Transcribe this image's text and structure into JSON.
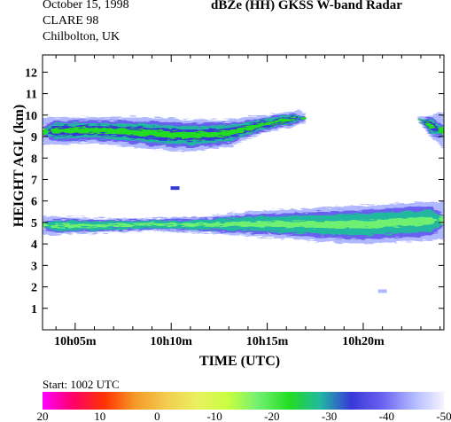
{
  "header": {
    "date": "October 15, 1998",
    "experiment": "CLARE 98",
    "site": "Chilbolton, UK",
    "title": "dBZe (HH)   GKSS  W-band Radar"
  },
  "colorbar": {
    "start_label": "Start: 1002 UTC",
    "stops": [
      "#ff00ff",
      "#ff0066",
      "#ff3300",
      "#f59a28",
      "#f2cc50",
      "#eaf060",
      "#c8ff40",
      "#70f070",
      "#22dd22",
      "#20b8a0",
      "#3838d8",
      "#6a60f0",
      "#b0b8ff",
      "#f4f4ff"
    ],
    "ticks": [
      "20",
      "10",
      "0",
      "-10",
      "-20",
      "-30",
      "-40",
      "-50"
    ]
  },
  "chart_data": {
    "type": "heatmap",
    "title": "dBZe (HH)   GKSS  W-band Radar",
    "xlabel": "TIME (UTC)",
    "ylabel": "HEIGHT AGL (km)",
    "x_unit": "minutes after 10h00 UTC",
    "xlim": [
      3.3,
      24.2
    ],
    "ylim": [
      0,
      12.8
    ],
    "x_ticks": [
      {
        "value": 5,
        "label": "10h05m"
      },
      {
        "value": 10,
        "label": "10h10m"
      },
      {
        "value": 15,
        "label": "10h15m"
      },
      {
        "value": 20,
        "label": "10h20m"
      }
    ],
    "y_ticks": [
      1,
      2,
      3,
      4,
      5,
      6,
      7,
      8,
      9,
      10,
      11,
      12
    ],
    "value_range_dbz": [
      -50,
      20
    ],
    "cloud_layers": [
      {
        "name": "upper",
        "base_km": [
          [
            3.3,
            8.6
          ],
          [
            6,
            8.7
          ],
          [
            9,
            8.4
          ],
          [
            11,
            8.3
          ],
          [
            13,
            8.5
          ],
          [
            14,
            8.9
          ],
          [
            15,
            9.2
          ],
          [
            17,
            9.6
          ]
        ],
        "top_km": [
          [
            3.3,
            9.9
          ],
          [
            5,
            9.9
          ],
          [
            7,
            9.9
          ],
          [
            9,
            9.9
          ],
          [
            11,
            9.8
          ],
          [
            13,
            9.8
          ],
          [
            15,
            10.0
          ],
          [
            16.5,
            10.2
          ],
          [
            17.5,
            10.0
          ]
        ],
        "peak_dbz": -25
      },
      {
        "name": "upper-right",
        "base_km": [
          [
            22.8,
            9.8
          ],
          [
            23.5,
            9.0
          ],
          [
            24.2,
            8.4
          ]
        ],
        "top_km": [
          [
            22.8,
            9.9
          ],
          [
            23.5,
            10.0
          ],
          [
            24.2,
            10.1
          ]
        ],
        "peak_dbz": -25
      },
      {
        "name": "lower",
        "base_km": [
          [
            3.3,
            4.4
          ],
          [
            6,
            4.5
          ],
          [
            9,
            4.6
          ],
          [
            12,
            4.5
          ],
          [
            15,
            4.3
          ],
          [
            18,
            4.1
          ],
          [
            20,
            4.0
          ],
          [
            22,
            4.1
          ],
          [
            24.2,
            4.2
          ]
        ],
        "top_km": [
          [
            3.3,
            5.3
          ],
          [
            6,
            5.2
          ],
          [
            9,
            5.2
          ],
          [
            12,
            5.3
          ],
          [
            14,
            5.5
          ],
          [
            16,
            5.6
          ],
          [
            18,
            5.7
          ],
          [
            20,
            5.8
          ],
          [
            22,
            5.9
          ],
          [
            24.2,
            6.0
          ]
        ],
        "peak_dbz": -15
      }
    ],
    "isolated_echoes": [
      {
        "x": 10.2,
        "y_km": 6.6,
        "dbz": -32
      },
      {
        "x": 21.0,
        "y_km": 1.8,
        "dbz": -45
      }
    ]
  }
}
